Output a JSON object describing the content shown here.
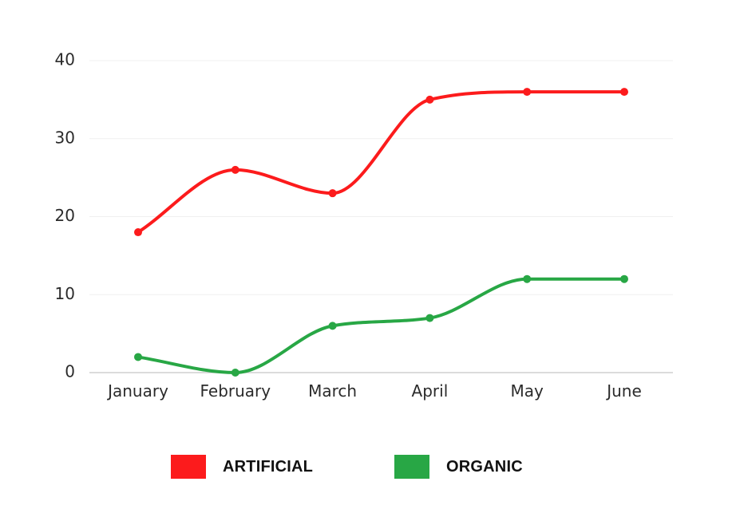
{
  "chart_data": {
    "type": "line",
    "title": "",
    "xlabel": "",
    "ylabel": "",
    "categories": [
      "January",
      "February",
      "March",
      "April",
      "May",
      "June"
    ],
    "ylim": [
      0,
      40
    ],
    "yticks": [
      0,
      10,
      20,
      30,
      40
    ],
    "grid": true,
    "smooth": true,
    "legend_placement": "bottom",
    "series": [
      {
        "name": "ARTIFICIAL",
        "color": "#fc1b1c",
        "values": [
          18,
          26,
          23,
          35,
          36,
          36
        ]
      },
      {
        "name": "ORGANIC",
        "color": "#28a745",
        "values": [
          2,
          0,
          6,
          7,
          12,
          12
        ]
      }
    ]
  }
}
